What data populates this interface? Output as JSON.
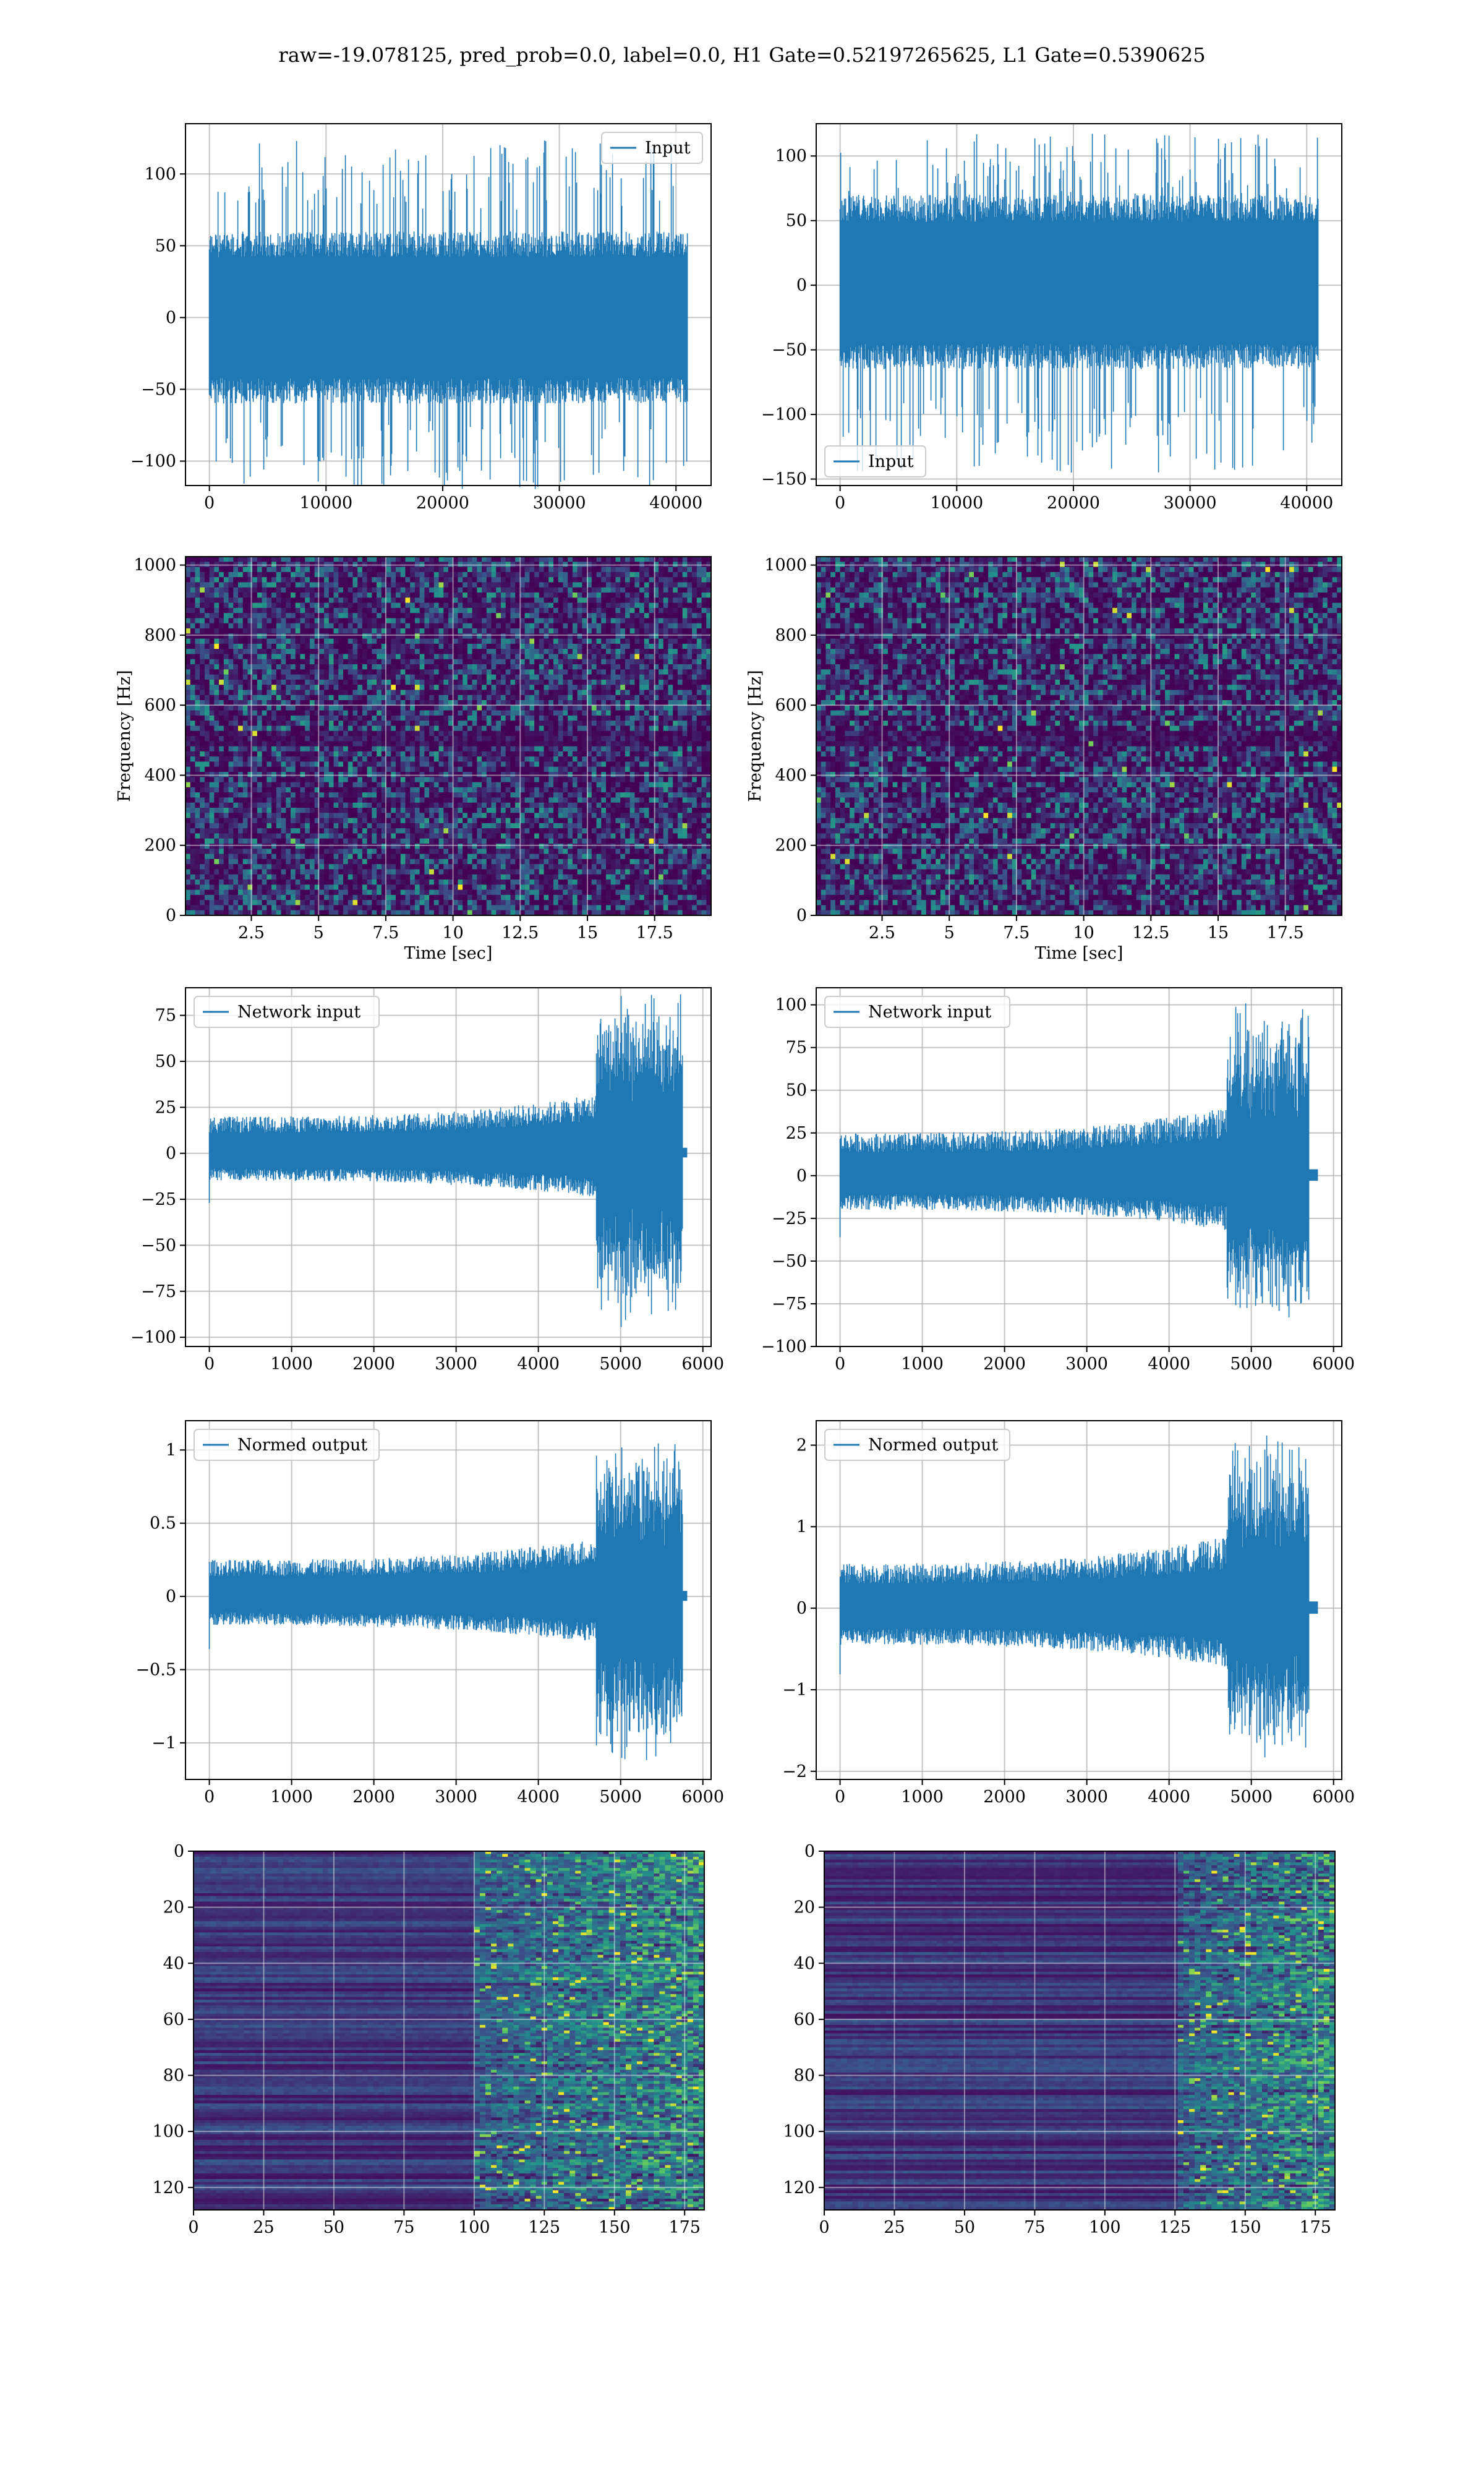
{
  "figure": {
    "suptitle": "raw=-19.078125, pred_prob=0.0, label=0.0, H1 Gate=0.52197265625, L1 Gate=0.5390625"
  },
  "colors": {
    "line": "#1f77b4",
    "grid": "#b0b0b0",
    "viridis_low": "#440154",
    "viridis_mid": "#21918c",
    "viridis_high": "#fde725"
  },
  "chart_data": [
    {
      "id": "input-left",
      "type": "line",
      "title": "",
      "xlabel": "",
      "ylabel": "",
      "xlim": [
        -2048,
        43008
      ],
      "ylim": [
        -117,
        135
      ],
      "xticks": [
        0,
        10000,
        20000,
        30000,
        40000
      ],
      "yticks": [
        -100,
        -50,
        0,
        50,
        100
      ],
      "legend_loc": "upper right",
      "grid": true,
      "series": [
        {
          "name": "Input",
          "n": 40960,
          "envelope": [
            -60,
            60
          ],
          "spikes": [
            -120,
            125
          ]
        }
      ]
    },
    {
      "id": "input-right",
      "type": "line",
      "title": "",
      "xlabel": "",
      "ylabel": "",
      "xlim": [
        -2048,
        43008
      ],
      "ylim": [
        -155,
        125
      ],
      "xticks": [
        0,
        10000,
        20000,
        30000,
        40000
      ],
      "yticks": [
        -150,
        -100,
        -50,
        0,
        50,
        100
      ],
      "legend_loc": "lower left",
      "grid": true,
      "series": [
        {
          "name": "Input",
          "n": 40960,
          "envelope": [
            -65,
            70
          ],
          "spikes": [
            -145,
            118
          ]
        }
      ]
    },
    {
      "id": "spectrogram-left",
      "type": "heatmap",
      "title": "",
      "xlabel": "Time [sec]",
      "ylabel": "Frequency [Hz]",
      "xlim": [
        0.05,
        19.6
      ],
      "ylim": [
        0,
        1024
      ],
      "xticks": [
        2.5,
        5.0,
        7.5,
        10.0,
        12.5,
        15.0,
        17.5
      ],
      "yticks": [
        0,
        200,
        400,
        600,
        800,
        1000
      ],
      "grid": true,
      "colormap": "viridis"
    },
    {
      "id": "spectrogram-right",
      "type": "heatmap",
      "title": "",
      "xlabel": "Time [sec]",
      "ylabel": "Frequency [Hz]",
      "xlim": [
        0.05,
        19.6
      ],
      "ylim": [
        0,
        1024
      ],
      "xticks": [
        2.5,
        5.0,
        7.5,
        10.0,
        12.5,
        15.0,
        17.5
      ],
      "yticks": [
        0,
        200,
        400,
        600,
        800,
        1000
      ],
      "grid": true,
      "colormap": "viridis"
    },
    {
      "id": "network-left",
      "type": "line",
      "title": "",
      "xlabel": "",
      "ylabel": "",
      "xlim": [
        -290,
        6100
      ],
      "ylim": [
        -105,
        90
      ],
      "xticks": [
        0,
        1000,
        2000,
        3000,
        4000,
        5000,
        6000
      ],
      "yticks": [
        -100,
        -75,
        -50,
        -25,
        0,
        25,
        50,
        75
      ],
      "legend_loc": "upper left",
      "grid": true,
      "series": [
        {
          "name": "Network input",
          "n": 5800,
          "quiet": [
            -15,
            20
          ],
          "burst_start": 4700,
          "burst_end": 5750,
          "burst": [
            -95,
            88
          ]
        }
      ]
    },
    {
      "id": "network-right",
      "type": "line",
      "title": "",
      "xlabel": "",
      "ylabel": "",
      "xlim": [
        -290,
        6100
      ],
      "ylim": [
        -100,
        110
      ],
      "xticks": [
        0,
        1000,
        2000,
        3000,
        4000,
        5000,
        6000
      ],
      "yticks": [
        -100,
        -75,
        -50,
        -25,
        0,
        25,
        50,
        75,
        100
      ],
      "legend_loc": "upper left",
      "grid": true,
      "series": [
        {
          "name": "Network input",
          "n": 5800,
          "quiet": [
            -20,
            25
          ],
          "burst_start": 4700,
          "burst_end": 5700,
          "burst": [
            -90,
            105
          ]
        }
      ]
    },
    {
      "id": "normed-left",
      "type": "line",
      "title": "",
      "xlabel": "",
      "ylabel": "",
      "xlim": [
        -290,
        6100
      ],
      "ylim": [
        -1.25,
        1.2
      ],
      "xticks": [
        0,
        1000,
        2000,
        3000,
        4000,
        5000,
        6000
      ],
      "yticks": [
        -1.0,
        -0.5,
        0.0,
        0.5,
        1.0
      ],
      "legend_loc": "upper left",
      "grid": true,
      "series": [
        {
          "name": "Normed output",
          "n": 5800,
          "quiet": [
            -0.2,
            0.25
          ],
          "burst_start": 4700,
          "burst_end": 5750,
          "burst": [
            -1.2,
            1.15
          ]
        }
      ]
    },
    {
      "id": "normed-right",
      "type": "line",
      "title": "",
      "xlabel": "",
      "ylabel": "",
      "xlim": [
        -290,
        6100
      ],
      "ylim": [
        -2.1,
        2.3
      ],
      "xticks": [
        0,
        1000,
        2000,
        3000,
        4000,
        5000,
        6000
      ],
      "yticks": [
        -2,
        -1,
        0,
        1,
        2
      ],
      "legend_loc": "upper left",
      "grid": true,
      "series": [
        {
          "name": "Normed output",
          "n": 5800,
          "quiet": [
            -0.45,
            0.55
          ],
          "burst_start": 4700,
          "burst_end": 5700,
          "burst": [
            -1.9,
            2.2
          ]
        }
      ]
    },
    {
      "id": "feature-left",
      "type": "heatmap",
      "title": "",
      "xlabel": "",
      "ylabel": "",
      "xlim": [
        0,
        182
      ],
      "ylim": [
        128,
        0
      ],
      "rows": 128,
      "cols": 182,
      "xticks": [
        0,
        25,
        50,
        75,
        100,
        125,
        150,
        175
      ],
      "yticks": [
        0,
        20,
        40,
        60,
        80,
        100,
        120
      ],
      "grid": true,
      "colormap": "viridis",
      "active_from_col": 100
    },
    {
      "id": "feature-right",
      "type": "heatmap",
      "title": "",
      "xlabel": "",
      "ylabel": "",
      "xlim": [
        0,
        182
      ],
      "ylim": [
        128,
        0
      ],
      "rows": 128,
      "cols": 182,
      "xticks": [
        0,
        25,
        50,
        75,
        100,
        125,
        150,
        175
      ],
      "yticks": [
        0,
        20,
        40,
        60,
        80,
        100,
        120
      ],
      "grid": true,
      "colormap": "viridis",
      "active_from_col": 125
    }
  ]
}
